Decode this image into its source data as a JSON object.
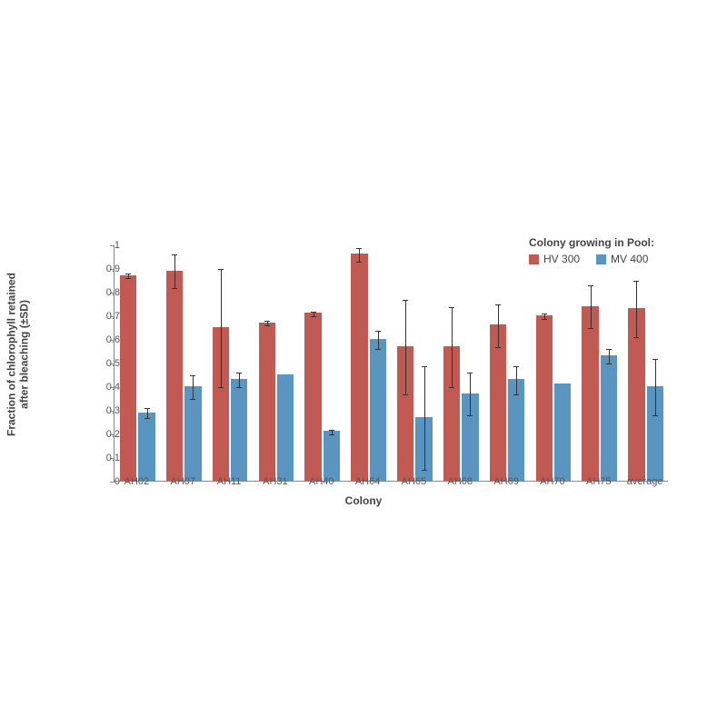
{
  "chart": {
    "type": "bar",
    "categories": [
      "AH02",
      "AH07",
      "AH11",
      "AH31",
      "AH40",
      "AH64",
      "AH65",
      "AH68",
      "AH69",
      "AH70",
      "AH75",
      "average"
    ],
    "series": [
      {
        "name": "HV 300",
        "color": "#c05a52",
        "values": [
          0.87,
          0.89,
          0.65,
          0.67,
          0.71,
          0.96,
          0.57,
          0.57,
          0.66,
          0.7,
          0.74,
          0.73
        ],
        "err": [
          0.01,
          0.07,
          0.25,
          0.01,
          0.01,
          0.03,
          0.2,
          0.17,
          0.09,
          0.01,
          0.09,
          0.12
        ]
      },
      {
        "name": "MV 400",
        "color": "#5a95c2",
        "values": [
          0.29,
          0.4,
          0.43,
          0.45,
          0.21,
          0.6,
          0.27,
          0.37,
          0.43,
          0.41,
          0.53,
          0.4
        ],
        "err": [
          0.02,
          0.05,
          0.03,
          0.0,
          0.01,
          0.04,
          0.22,
          0.09,
          0.06,
          0.0,
          0.03,
          0.12
        ]
      }
    ],
    "ylim": [
      0,
      1
    ],
    "ytick_step": 0.1,
    "ylabel_line1": "Fraction of chlorophyll  retained",
    "ylabel_line2": "after bleaching (±SD)",
    "xlabel": "Colony",
    "legend_title": "Colony growing in Pool:",
    "background_color": "#ffffff",
    "axis_color": "#888888",
    "text_color": "#555555",
    "title_fontsize": 12,
    "label_fontsize": 11,
    "bar_width": 0.36,
    "bar_gap": 0.04,
    "err_cap_width": 6
  }
}
